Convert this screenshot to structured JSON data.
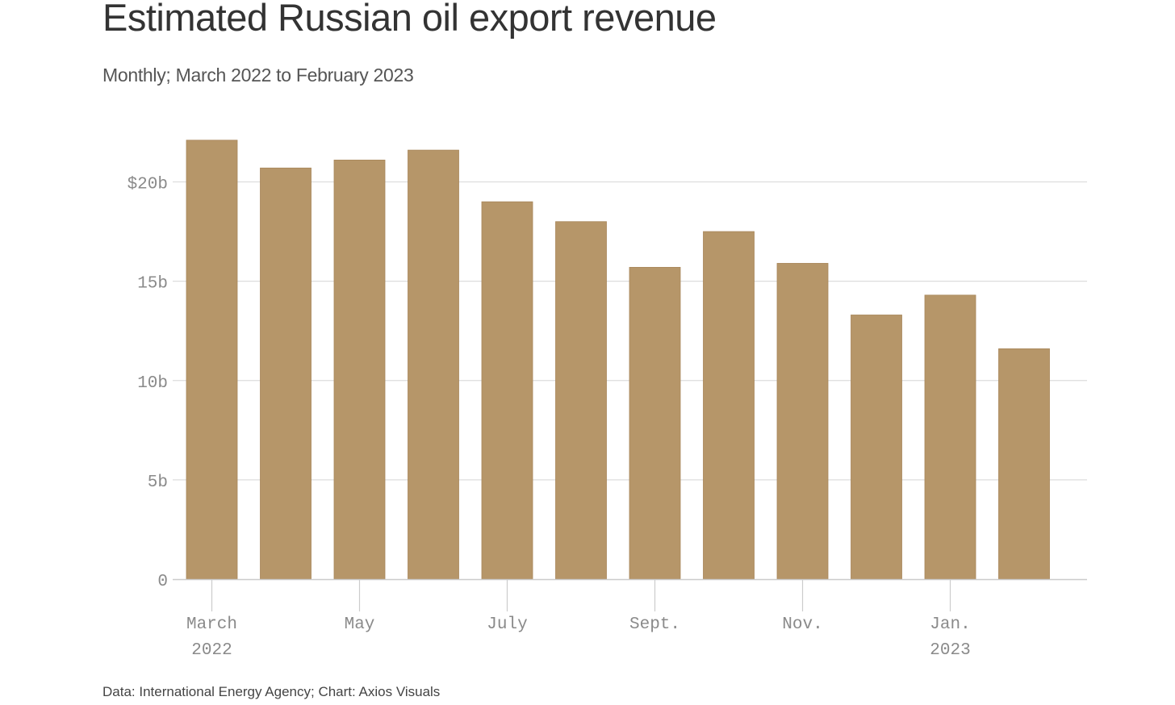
{
  "title": "Estimated Russian oil export revenue",
  "subtitle": "Monthly; March 2022 to February 2023",
  "footer": "Data: International Energy Agency; Chart: Axios Visuals",
  "colors": {
    "bar": "#b69669",
    "grid": "#dddddd",
    "axis": "#cccccc",
    "tick_text": "#8a8a8a",
    "title": "#333333"
  },
  "chart_data": {
    "type": "bar",
    "title": "Estimated Russian oil export revenue",
    "subtitle": "Monthly; March 2022 to February 2023",
    "xlabel": "",
    "ylabel": "",
    "categories": [
      "Mar 2022",
      "Apr 2022",
      "May 2022",
      "Jun 2022",
      "Jul 2022",
      "Aug 2022",
      "Sep 2022",
      "Oct 2022",
      "Nov 2022",
      "Dec 2022",
      "Jan 2023",
      "Feb 2023"
    ],
    "values": [
      22.1,
      20.7,
      21.1,
      21.6,
      19.0,
      18.0,
      15.7,
      17.5,
      15.9,
      13.3,
      14.3,
      11.6
    ],
    "unit": "billion USD",
    "ylim": [
      0,
      22.5
    ],
    "y_ticks": [
      {
        "value": 0,
        "label": "0"
      },
      {
        "value": 5,
        "label": "5b"
      },
      {
        "value": 10,
        "label": "10b"
      },
      {
        "value": 15,
        "label": "15b"
      },
      {
        "value": 20,
        "label": "$20b"
      }
    ],
    "x_ticks": [
      {
        "index": 0,
        "label": "March",
        "sublabel": "2022"
      },
      {
        "index": 2,
        "label": "May",
        "sublabel": ""
      },
      {
        "index": 4,
        "label": "July",
        "sublabel": ""
      },
      {
        "index": 6,
        "label": "Sept.",
        "sublabel": ""
      },
      {
        "index": 8,
        "label": "Nov.",
        "sublabel": ""
      },
      {
        "index": 10,
        "label": "Jan.",
        "sublabel": "2023"
      }
    ],
    "grid": true,
    "legend": "none"
  }
}
